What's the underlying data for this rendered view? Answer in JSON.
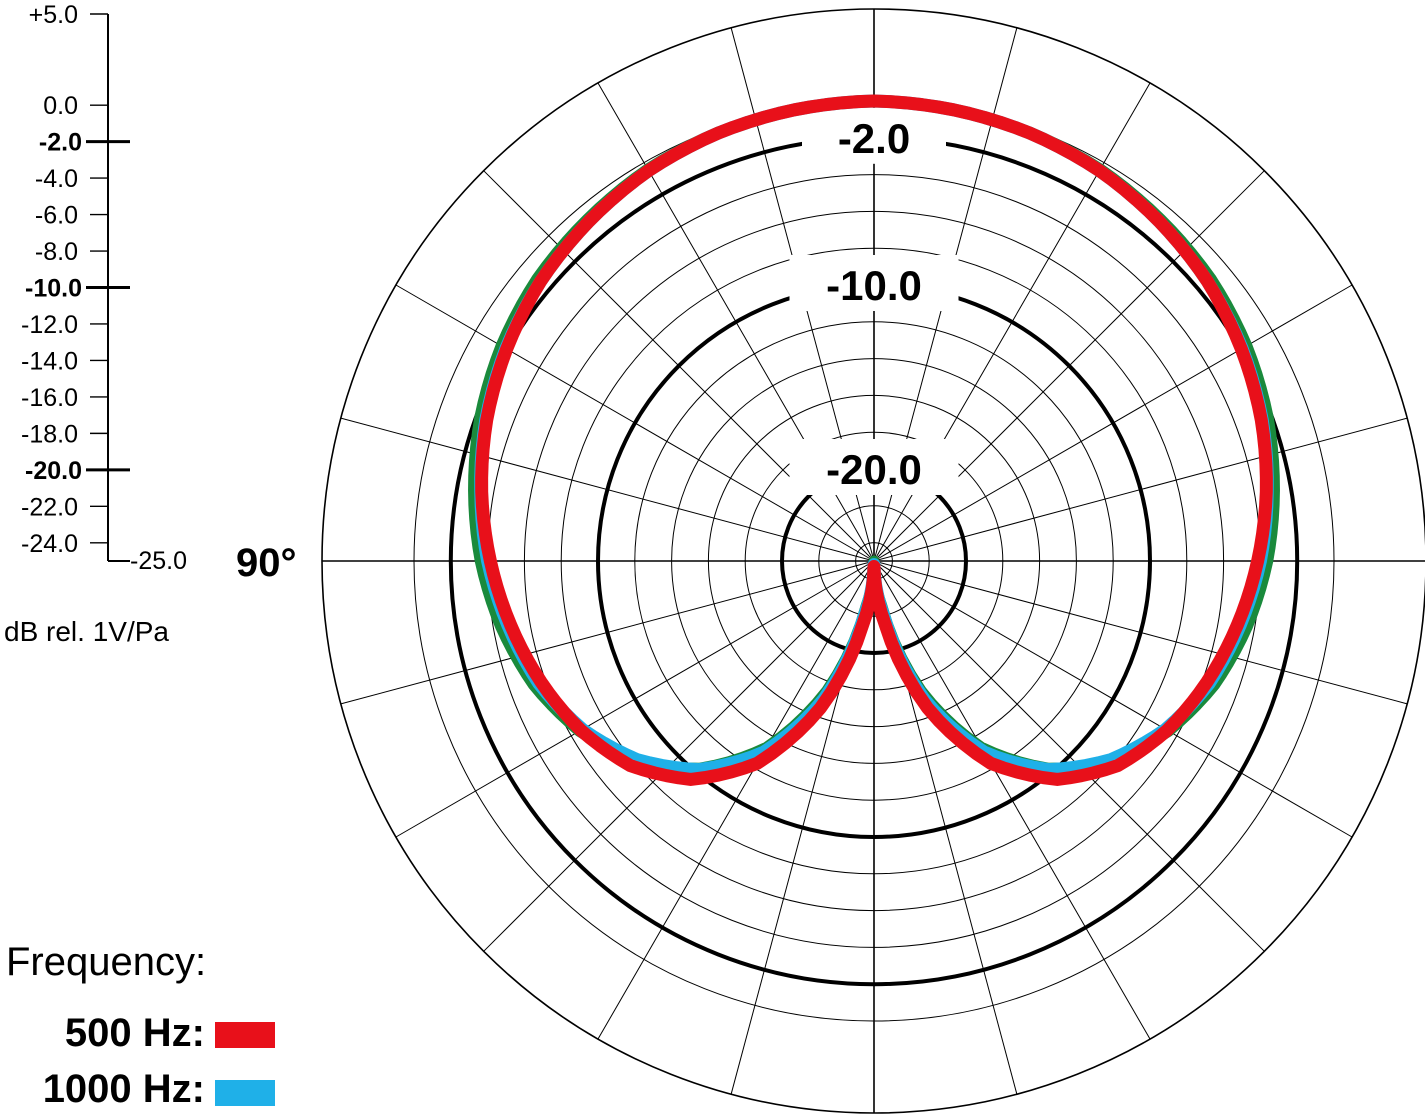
{
  "chart_data": {
    "type": "polar",
    "title": "",
    "unit_label": "dB rel. 1V/Pa",
    "angle_labels": [
      "90°"
    ],
    "r_range": [
      -25,
      5
    ],
    "scale_ticks": [
      {
        "label": "+5.0",
        "value": 5,
        "major": false
      },
      {
        "label": "0.0",
        "value": 0,
        "major": false
      },
      {
        "label": "-2.0",
        "value": -2,
        "major": true
      },
      {
        "label": "-4.0",
        "value": -4,
        "major": false
      },
      {
        "label": "-6.0",
        "value": -6,
        "major": false
      },
      {
        "label": "-8.0",
        "value": -8,
        "major": false
      },
      {
        "label": "-10.0",
        "value": -10,
        "major": true
      },
      {
        "label": "-12.0",
        "value": -12,
        "major": false
      },
      {
        "label": "-14.0",
        "value": -14,
        "major": false
      },
      {
        "label": "-16.0",
        "value": -16,
        "major": false
      },
      {
        "label": "-18.0",
        "value": -18,
        "major": false
      },
      {
        "label": "-20.0",
        "value": -20,
        "major": true
      },
      {
        "label": "-22.0",
        "value": -22,
        "major": false
      },
      {
        "label": "-24.0",
        "value": -24,
        "major": false
      },
      {
        "label": "-25.0",
        "value": -25,
        "major": false
      }
    ],
    "ring_labels": [
      {
        "label": "-2.0",
        "value": -2
      },
      {
        "label": "-10.0",
        "value": -10
      },
      {
        "label": "-20.0",
        "value": -20
      }
    ],
    "rings": [
      -24,
      -22,
      -20,
      -18,
      -16,
      -14,
      -12,
      -10,
      -8,
      -6,
      -4,
      -2,
      0,
      5
    ],
    "major_rings": [
      -20,
      -10,
      -2
    ],
    "spoke_step_deg": 15,
    "legend": {
      "title": "Frequency:",
      "placement": "bottom-left"
    },
    "series": [
      {
        "name": "",
        "color": "#1a8a3c",
        "stroke_width": 11,
        "draw_order": 0,
        "legend": false,
        "angles_deg": [
          0,
          10,
          20,
          30,
          40,
          50,
          60,
          70,
          80,
          90,
          100,
          110,
          120,
          130,
          140,
          150,
          160,
          170,
          180
        ],
        "values_db": [
          0.0,
          -0.1,
          -0.2,
          -0.4,
          -0.75,
          -1.1,
          -1.6,
          -2.2,
          -2.9,
          -3.6,
          -4.4,
          -5.3,
          -6.5,
          -8.1,
          -10.3,
          -13.3,
          -17.5,
          -22.5,
          -25.0
        ]
      },
      {
        "name": "1000 Hz",
        "color": "#1fb0e8",
        "stroke_width": 13,
        "draw_order": 1,
        "legend": true,
        "angles_deg": [
          0,
          10,
          20,
          30,
          40,
          50,
          60,
          70,
          80,
          90,
          100,
          110,
          120,
          130,
          140,
          150,
          160,
          170,
          180
        ],
        "values_db": [
          0.0,
          -0.1,
          -0.25,
          -0.5,
          -0.9,
          -1.35,
          -1.9,
          -2.55,
          -3.3,
          -4.0,
          -4.8,
          -5.6,
          -6.7,
          -8.2,
          -10.2,
          -13.0,
          -17.0,
          -22.0,
          -24.8
        ]
      },
      {
        "name": "500 Hz",
        "color": "#e8101a",
        "stroke_width": 13,
        "draw_order": 2,
        "legend": true,
        "angles_deg": [
          0,
          10,
          20,
          30,
          40,
          50,
          60,
          70,
          80,
          90,
          100,
          110,
          120,
          130,
          140,
          150,
          160,
          170,
          180
        ],
        "values_db": [
          0.0,
          -0.1,
          -0.25,
          -0.5,
          -0.9,
          -1.35,
          -1.95,
          -2.6,
          -3.35,
          -4.15,
          -4.95,
          -5.75,
          -6.6,
          -7.7,
          -9.5,
          -12.3,
          -16.5,
          -21.5,
          -24.7
        ]
      }
    ]
  }
}
